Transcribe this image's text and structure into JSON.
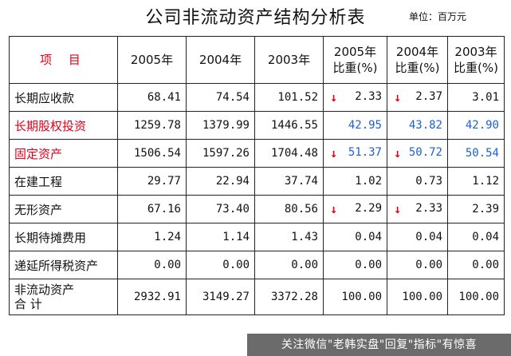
{
  "title": "公司非流动资产结构分析表",
  "unit": "单位：百万元",
  "header": {
    "item": "项 目",
    "y2005": "2005年",
    "y2004": "2004年",
    "y2003": "2003年",
    "r2005": [
      "2005年",
      "比重(%)"
    ],
    "r2004": [
      "2004年",
      "比重(%)"
    ],
    "r2003": [
      "2003年",
      "比重(%)"
    ]
  },
  "rows": [
    {
      "label": "长期应收款",
      "v2005": "68.41",
      "v2004": "74.54",
      "v2003": "101.52",
      "r2005": "2.33",
      "r2004": "2.37",
      "r2003": "3.01"
    },
    {
      "label": "长期股权投资",
      "v2005": "1259.78",
      "v2004": "1379.99",
      "v2003": "1446.55",
      "r2005": "42.95",
      "r2004": "43.82",
      "r2003": "42.90"
    },
    {
      "label": "固定资产",
      "v2005": "1506.54",
      "v2004": "1597.26",
      "v2003": "1704.48",
      "r2005": "51.37",
      "r2004": "50.72",
      "r2003": "50.54"
    },
    {
      "label": "在建工程",
      "v2005": "29.77",
      "v2004": "22.94",
      "v2003": "37.74",
      "r2005": "1.02",
      "r2004": "0.73",
      "r2003": "1.12"
    },
    {
      "label": "无形资产",
      "v2005": "67.16",
      "v2004": "73.40",
      "v2003": "80.56",
      "r2005": "2.29",
      "r2004": "2.33",
      "r2003": "2.39"
    },
    {
      "label": "长期待摊费用",
      "v2005": "1.24",
      "v2004": "1.14",
      "v2003": "1.43",
      "r2005": "0.04",
      "r2004": "0.04",
      "r2003": "0.04"
    },
    {
      "label": "递延所得税资产",
      "v2005": "0.00",
      "v2004": "0.00",
      "v2003": "0.00",
      "r2005": "0.00",
      "r2004": "0.00",
      "r2003": "0.00"
    }
  ],
  "total": {
    "label": [
      "非流动资产",
      "合 计"
    ],
    "v2005": "2932.91",
    "v2004": "3149.27",
    "v2003": "3372.28",
    "r2005": "100.00",
    "r2004": "100.00",
    "r2003": "100.00"
  },
  "colors": {
    "highlight_red": "#e0001a",
    "highlight_blue": "#1a5fd6"
  },
  "icons": {
    "down_arrow": "down-arrow-icon"
  },
  "watermark": "关注微信\"老韩实盘\"回复\"指标\"有惊喜"
}
